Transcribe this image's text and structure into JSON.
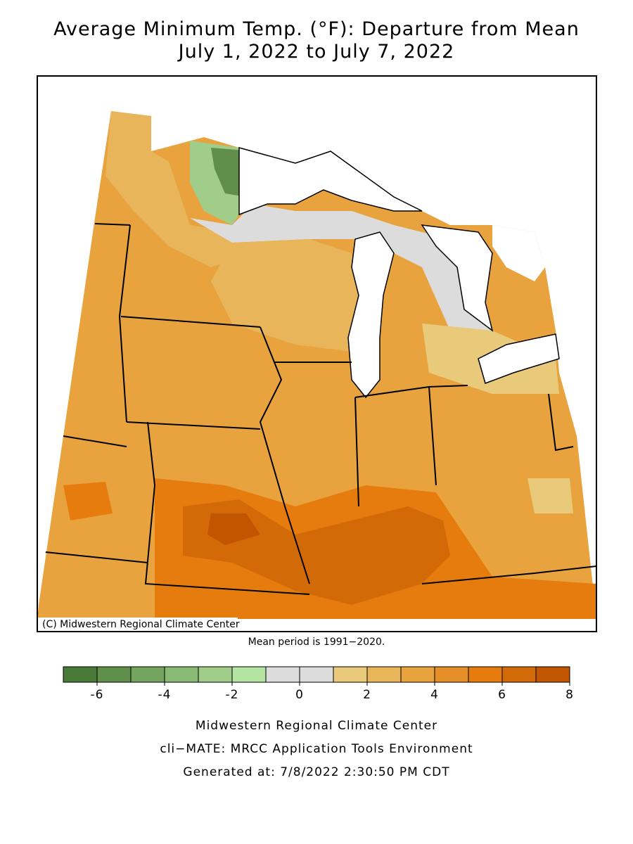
{
  "title": [
    "Average Minimum Temp. (°F): Departure from Mean",
    "July 1, 2022 to July 7, 2022"
  ],
  "map": {
    "copyright": "(C) Midwestern Regional Climate Center",
    "note": "Mean period is 1991−2020."
  },
  "colorbar": {
    "bins": [
      -7,
      -6,
      -5,
      -4,
      -3,
      -2,
      -1,
      0,
      1,
      2,
      3,
      4,
      5,
      6,
      7,
      8
    ],
    "colors": [
      "#4a7a38",
      "#5f8f4b",
      "#75a45f",
      "#8bba75",
      "#a0cd8a",
      "#b5e4a2",
      "#dcdcdc",
      "#dcdcdc",
      "#e9c97a",
      "#e8b55a",
      "#e8a33e",
      "#e68f28",
      "#e67c0e",
      "#d26a08",
      "#c25500"
    ],
    "ticks": [
      -6,
      -4,
      -2,
      0,
      2,
      4,
      6,
      8
    ]
  },
  "footer": [
    "Midwestern Regional Climate Center",
    "cli−MATE: MRCC Application Tools Environment",
    "Generated at: 7/8/2022 2:30:50 PM CDT"
  ]
}
